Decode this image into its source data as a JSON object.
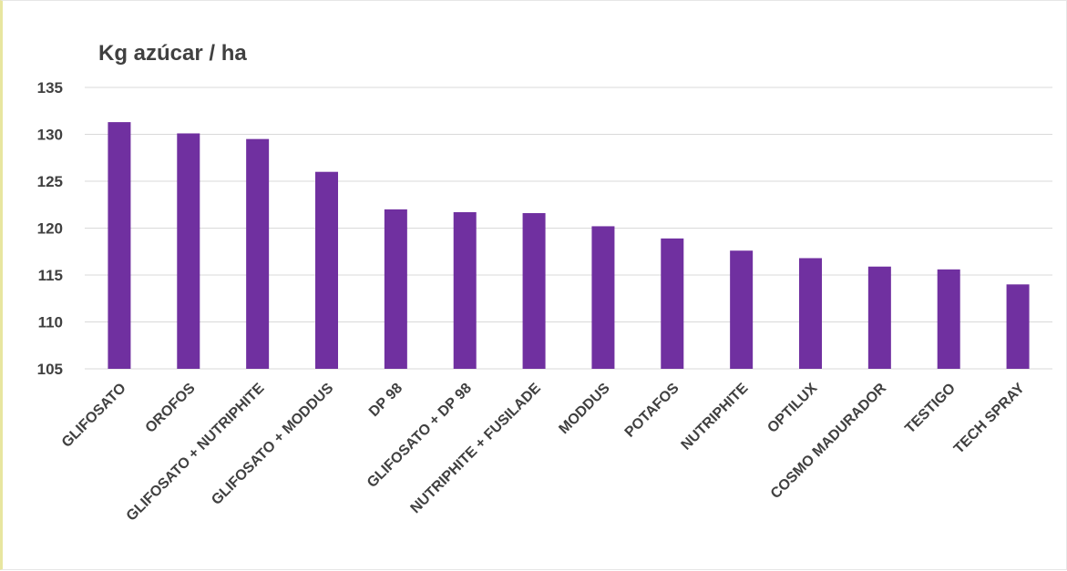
{
  "chart_data": {
    "type": "bar",
    "title": "Kg azúcar / ha",
    "xlabel": "",
    "ylabel": "",
    "ylim": [
      105,
      135
    ],
    "yticks": [
      105,
      110,
      115,
      120,
      125,
      130,
      135
    ],
    "grid": true,
    "legend": "none",
    "bar_color": "#7030a0",
    "categories": [
      "GLIFOSATO",
      "OROFOS",
      "GLIFOSATO + NUTRIPHITE",
      "GLIFOSATO + MODDUS",
      "DP 98",
      "GLIFOSATO + DP 98",
      "NUTRIPHITE + FUSILADE",
      "MODDUS",
      "POTAFOS",
      "NUTRIPHITE",
      "OPTILUX",
      "COSMO MADURADOR",
      "TESTIGO",
      "TECH SPRAY"
    ],
    "values": [
      131.3,
      130.1,
      129.5,
      126.0,
      122.0,
      121.7,
      121.6,
      120.2,
      118.9,
      117.6,
      116.8,
      115.9,
      115.6,
      114.0
    ]
  }
}
